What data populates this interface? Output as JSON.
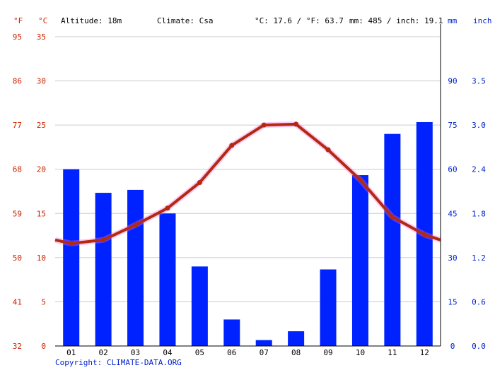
{
  "header": {
    "unit_f": "°F",
    "unit_c": "°C",
    "altitude": "Altitude: 18m",
    "climate": "Climate: Csa",
    "temp_avg": "°C: 17.6 / °F: 63.7",
    "precip_total": "mm: 485 / inch: 19.1",
    "unit_mm": "mm",
    "unit_inch": "inch"
  },
  "copyright": "Copyright: CLIMATE-DATA.ORG",
  "colors": {
    "temperature_axis": "#cc2200",
    "precip_axis": "#0022cc",
    "bars": "#0022ff",
    "line": "#b22a10",
    "line_glow": "#ff66dd",
    "grid": "#cccccc"
  },
  "chart_data": {
    "type": "bar+line",
    "categories": [
      "01",
      "02",
      "03",
      "04",
      "05",
      "06",
      "07",
      "08",
      "09",
      "10",
      "11",
      "12"
    ],
    "series": [
      {
        "type": "bar",
        "axis": "right",
        "unit": "mm",
        "values": [
          60,
          52,
          53,
          45,
          27,
          9,
          2,
          5,
          26,
          58,
          72,
          76
        ]
      },
      {
        "type": "line",
        "axis": "left",
        "unit": "°C",
        "values": [
          11.6,
          12.0,
          13.7,
          15.6,
          18.5,
          22.7,
          25.0,
          25.1,
          22.2,
          18.8,
          14.6,
          12.6
        ],
        "start_value": 12.0,
        "end_value": 12.0
      }
    ],
    "axes": {
      "celsius": {
        "ticks": [
          0,
          5,
          10,
          15,
          20,
          25,
          30,
          35
        ],
        "labels": [
          "0",
          "5",
          "10",
          "15",
          "20",
          "25",
          "30",
          "35"
        ],
        "range": [
          0,
          35
        ]
      },
      "fahrenheit": {
        "ticks": [
          0,
          5,
          10,
          15,
          20,
          25,
          30,
          35
        ],
        "labels": [
          "32",
          "41",
          "50",
          "59",
          "68",
          "77",
          "86",
          "95"
        ]
      },
      "mm": {
        "ticks": [
          0,
          15,
          30,
          45,
          60,
          75,
          90
        ],
        "labels": [
          "0",
          "15",
          "30",
          "45",
          "60",
          "75",
          "90"
        ],
        "range": [
          0,
          105
        ]
      },
      "inch": {
        "ticks": [
          0,
          15,
          30,
          45,
          60,
          75,
          90
        ],
        "labels": [
          "0.0",
          "0.6",
          "1.2",
          "1.8",
          "2.4",
          "3.0",
          "3.5"
        ]
      }
    },
    "grid": true,
    "legend": "none"
  }
}
